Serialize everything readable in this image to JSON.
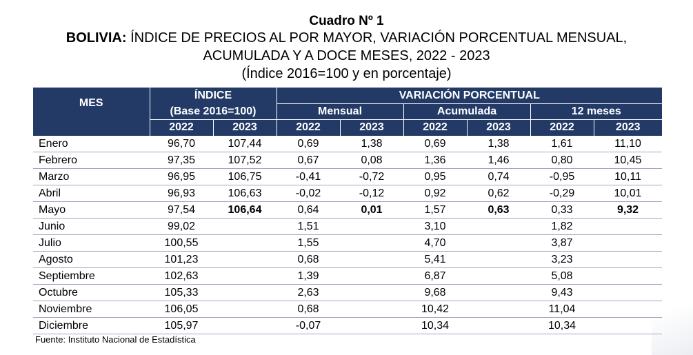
{
  "title": "Cuadro Nº 1",
  "subtitle_bold": "BOLIVIA:",
  "subtitle_rest": " ÍNDICE DE PRECIOS AL POR MAYOR, VARIACIÓN PORCENTUAL MENSUAL,",
  "subtitle_line2": "ACUMULADA Y A DOCE MESES, 2022 - 2023",
  "subtitle_line3": "(Índice 2016=100 y en porcentaje)",
  "headers": {
    "mes": "MES",
    "indice": "ÍNDICE",
    "base": "(Base 2016=100)",
    "variacion": "VARIACIÓN PORCENTUAL",
    "mensual": "Mensual",
    "acumulada": "Acumulada",
    "doce": "12 meses",
    "years": [
      "2022",
      "2023",
      "2022",
      "2023",
      "2022",
      "2023",
      "2022",
      "2023"
    ]
  },
  "rows": [
    [
      "Enero",
      "96,70",
      "107,44",
      "0,69",
      "1,38",
      "0,69",
      "1,38",
      "1,61",
      "11,10"
    ],
    [
      "Febrero",
      "97,35",
      "107,52",
      "0,67",
      "0,08",
      "1,36",
      "1,46",
      "0,80",
      "10,45"
    ],
    [
      "Marzo",
      "96,95",
      "106,75",
      "-0,41",
      "-0,72",
      "0,95",
      "0,74",
      "-0,95",
      "10,11"
    ],
    [
      "Abril",
      "96,93",
      "106,63",
      "-0,02",
      "-0,12",
      "0,92",
      "0,62",
      "-0,29",
      "10,01"
    ],
    [
      "Mayo",
      "97,54",
      "106,64",
      "0,64",
      "0,01",
      "1,57",
      "0,63",
      "0,33",
      "9,32"
    ],
    [
      "Junio",
      "99,02",
      "",
      "1,51",
      "",
      "3,10",
      "",
      "1,82",
      ""
    ],
    [
      "Julio",
      "100,55",
      "",
      "1,55",
      "",
      "4,70",
      "",
      "3,87",
      ""
    ],
    [
      "Agosto",
      "101,23",
      "",
      "0,68",
      "",
      "5,41",
      "",
      "3,23",
      ""
    ],
    [
      "Septiembre",
      "102,63",
      "",
      "1,39",
      "",
      "6,87",
      "",
      "5,08",
      ""
    ],
    [
      "Octubre",
      "105,33",
      "",
      "2,63",
      "",
      "9,68",
      "",
      "9,43",
      ""
    ],
    [
      "Noviembre",
      "106,05",
      "",
      "0,68",
      "",
      "10,42",
      "",
      "11,04",
      ""
    ],
    [
      "Diciembre",
      "105,97",
      "",
      "-0,07",
      "",
      "10,34",
      "",
      "10,34",
      ""
    ]
  ],
  "source": "Fuente: Instituto Nacional de Estadística",
  "colors": {
    "header_bg": "#233a67",
    "header_text": "#ffffff"
  }
}
